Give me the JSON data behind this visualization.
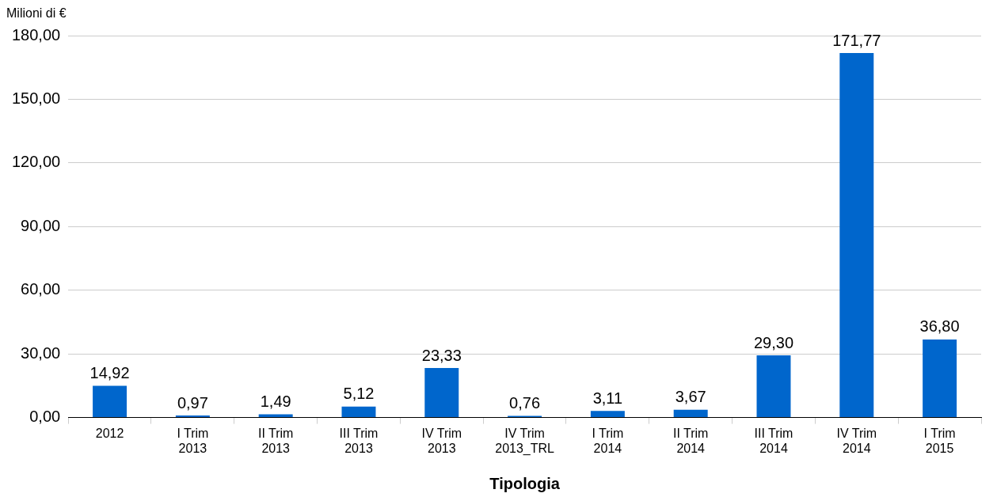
{
  "chart_data": {
    "type": "bar",
    "xlabel": "Tipologia",
    "ylabel": "Milioni di €",
    "categories": [
      "2012",
      "I Trim\n2013",
      "II Trim\n2013",
      "III Trim\n2013",
      "IV Trim\n2013",
      "IV Trim\n2013_TRL",
      "I Trim\n2014",
      "II Trim\n2014",
      "III Trim\n2014",
      "IV Trim\n2014",
      "I Trim\n2015"
    ],
    "values": [
      14.92,
      0.97,
      1.49,
      5.12,
      23.33,
      0.76,
      3.11,
      3.67,
      29.3,
      171.77,
      36.8
    ],
    "value_labels": [
      "14,92",
      "0,97",
      "1,49",
      "5,12",
      "23,33",
      "0,76",
      "3,11",
      "3,67",
      "29,30",
      "171,77",
      "36,80"
    ],
    "color": "#0066cc",
    "ylim": [
      0,
      180
    ],
    "yticks": [
      {
        "value": 0,
        "label": "0,00"
      },
      {
        "value": 30,
        "label": "30,00"
      },
      {
        "value": 60,
        "label": "60,00"
      },
      {
        "value": 90,
        "label": "90,00"
      },
      {
        "value": 120,
        "label": "120,00"
      },
      {
        "value": 150,
        "label": "150,00"
      },
      {
        "value": 180,
        "label": "180,00"
      }
    ],
    "grid": "y",
    "legend": false
  }
}
